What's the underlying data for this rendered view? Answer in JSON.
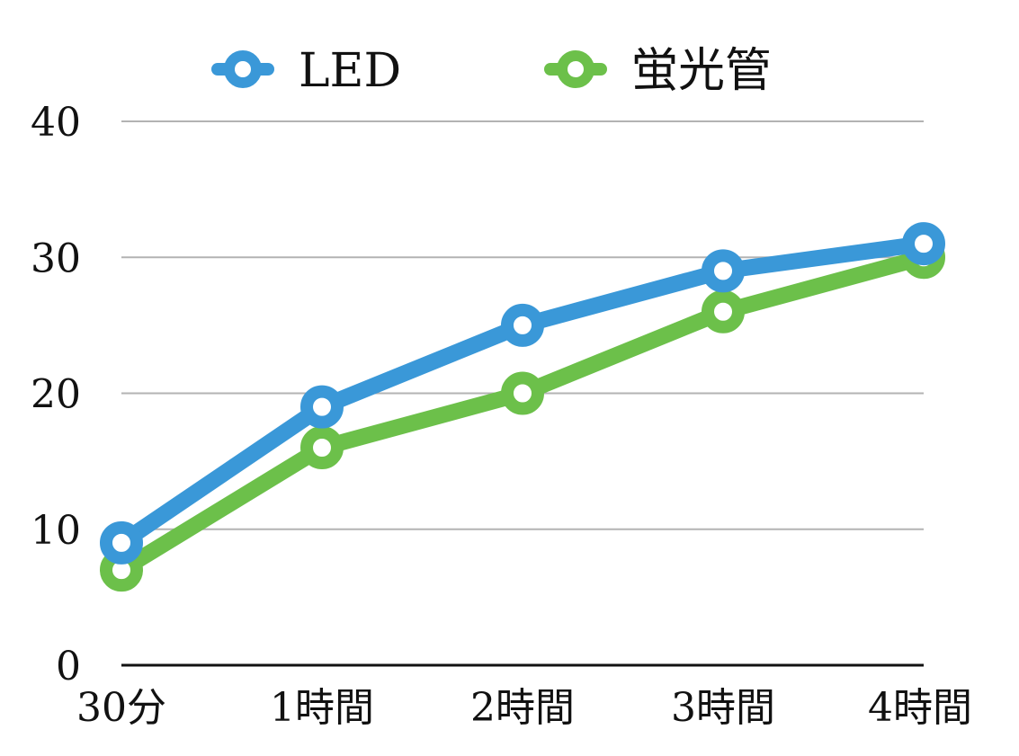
{
  "chart_data": {
    "type": "line",
    "categories": [
      "30分",
      "1時間",
      "2時間",
      "3時間",
      "4時間"
    ],
    "series": [
      {
        "name": "LED",
        "values": [
          9,
          19,
          25,
          29,
          31
        ],
        "color": "#3A98D8"
      },
      {
        "name": "蛍光管",
        "values": [
          7,
          16,
          20,
          26,
          30
        ],
        "color": "#6CC04A"
      }
    ],
    "ylim": [
      0,
      40
    ],
    "yticks": [
      "0",
      "10",
      "20",
      "30",
      "40"
    ],
    "grid": true,
    "legend": "top-center",
    "markers": "hollow-circle"
  }
}
